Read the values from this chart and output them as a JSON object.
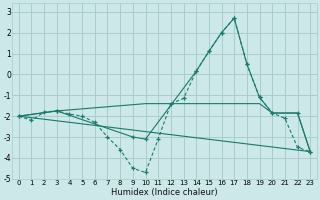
{
  "xlabel": "Humidex (Indice chaleur)",
  "bg_color": "#cce8e8",
  "grid_color": "#aacccc",
  "line_color": "#1a7a6a",
  "xlim": [
    -0.5,
    23.5
  ],
  "ylim": [
    -5,
    3.4
  ],
  "yticks": [
    -5,
    -4,
    -3,
    -2,
    -1,
    0,
    1,
    2,
    3
  ],
  "xticks": [
    0,
    1,
    2,
    3,
    4,
    5,
    6,
    7,
    8,
    9,
    10,
    11,
    12,
    13,
    14,
    15,
    16,
    17,
    18,
    19,
    20,
    21,
    22,
    23
  ],
  "series": [
    {
      "x": [
        0,
        1,
        2,
        3,
        4,
        5,
        6,
        7,
        8,
        9,
        10,
        11,
        12,
        13,
        14,
        15,
        16,
        17,
        18,
        19,
        20,
        21,
        22,
        23
      ],
      "y": [
        -2.0,
        -2.2,
        -1.8,
        -1.75,
        -1.9,
        -2.0,
        -2.3,
        -3.0,
        -3.6,
        -4.5,
        -4.7,
        -3.1,
        -1.4,
        -1.15,
        0.15,
        1.1,
        2.0,
        2.7,
        0.5,
        -1.1,
        -1.85,
        -2.1,
        -3.5,
        -3.7
      ],
      "has_marker": true
    },
    {
      "x": [
        0,
        23
      ],
      "y": [
        -2.0,
        -3.7
      ],
      "has_marker": false
    },
    {
      "x": [
        0,
        3,
        10,
        19,
        20,
        22,
        23
      ],
      "y": [
        -2.0,
        -1.75,
        -1.4,
        -1.4,
        -1.85,
        -1.85,
        -3.7
      ],
      "has_marker": false
    },
    {
      "x": [
        0,
        3,
        9,
        10,
        14,
        15,
        16,
        17,
        18,
        19,
        20,
        22,
        23
      ],
      "y": [
        -2.0,
        -1.75,
        -3.0,
        -3.1,
        0.15,
        1.1,
        2.0,
        2.7,
        0.5,
        -1.1,
        -1.85,
        -1.85,
        -3.7
      ],
      "has_marker": true
    }
  ]
}
